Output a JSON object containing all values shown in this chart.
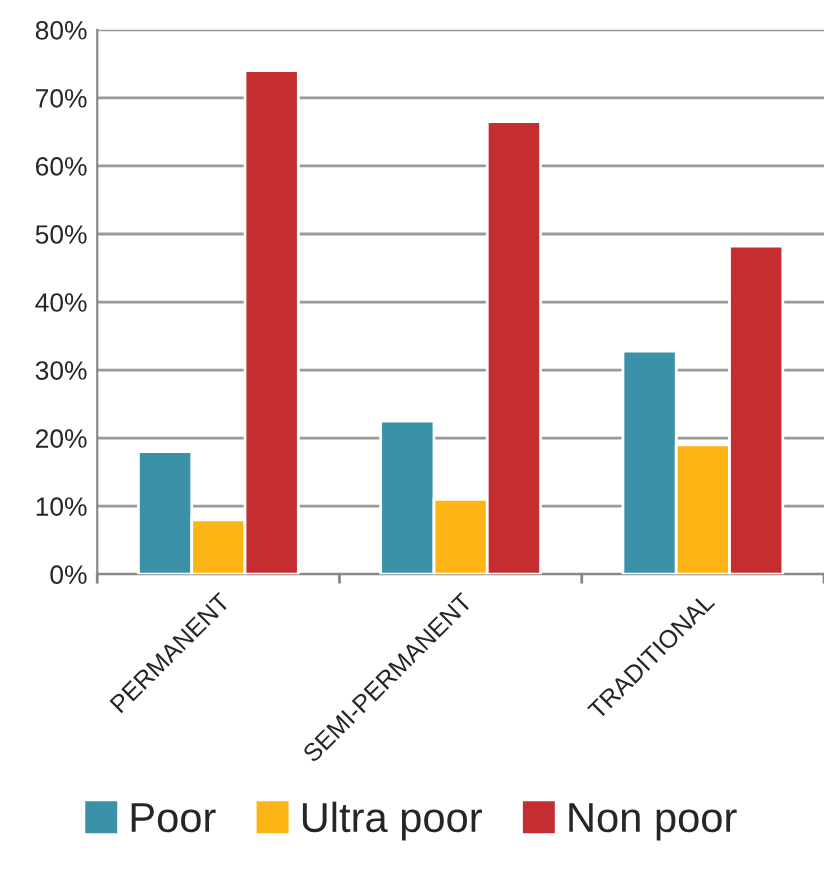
{
  "chart_data": {
    "type": "bar",
    "categories": [
      "PERMANENT",
      "SEMI-PERMANENT",
      "TRADITIONAL"
    ],
    "series": [
      {
        "name": "Poor",
        "color": "#3a91a8",
        "values": [
          18,
          22.5,
          32.8
        ]
      },
      {
        "name": "Ultra poor",
        "color": "#fdb515",
        "values": [
          8,
          11,
          19
        ]
      },
      {
        "name": "Non poor",
        "color": "#c42e31",
        "values": [
          74,
          66.5,
          48.2
        ]
      }
    ],
    "ylim": [
      0,
      80
    ],
    "yticks": [
      {
        "value": 0,
        "label": "0%"
      },
      {
        "value": 10,
        "label": "10%"
      },
      {
        "value": 20,
        "label": "20%"
      },
      {
        "value": 30,
        "label": "30%"
      },
      {
        "value": 40,
        "label": "40%"
      },
      {
        "value": 50,
        "label": "50%"
      },
      {
        "value": 60,
        "label": "60%"
      },
      {
        "value": 70,
        "label": "70%"
      },
      {
        "value": 80,
        "label": "80%"
      }
    ],
    "grid": "y",
    "legend": "bottom"
  }
}
